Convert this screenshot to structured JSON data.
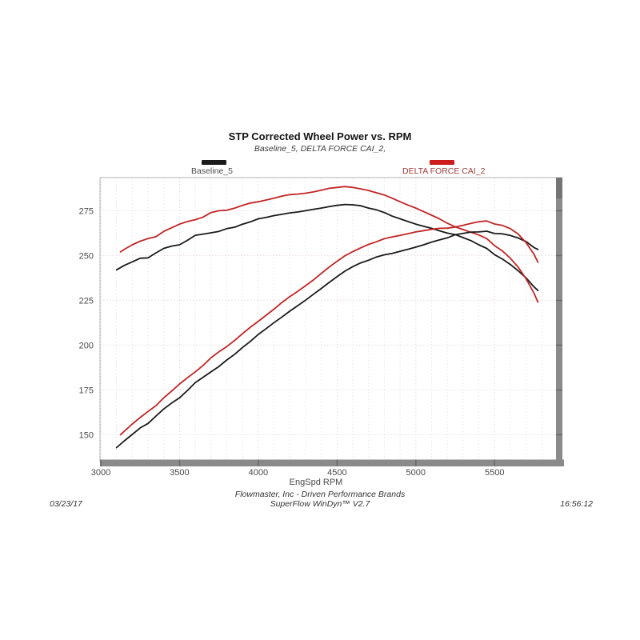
{
  "page": {
    "title": "STP Corrected Wheel Power vs. RPM",
    "subtitle": "Baseline_5, DELTA FORCE CAI_2,",
    "footer_line1": "Flowmaster, Inc - Driven Performance Brands",
    "footer_line2": "SuperFlow WinDyn™ V2.7",
    "date": "03/23/17",
    "time": "16:56:12"
  },
  "legend": [
    {
      "label": "Baseline_5",
      "color": "#1a1a1a",
      "text_color": "#4d4d4d"
    },
    {
      "label": "DELTA FORCE CAI_2",
      "color": "#cc1c1c",
      "text_color": "#9c3a3a"
    }
  ],
  "colors": {
    "baseline_curve": "#1a1a1a",
    "delta_curve": "#c22424",
    "axis_bar": "#8a8a8a",
    "axis_notch": "#6a6a6a",
    "plot_border": "#b3b3b3",
    "h_grid": "#ecdada",
    "v_grid": "#e7e7ee",
    "tick_text": "#4a4a4a"
  },
  "chart_data": {
    "type": "line",
    "title": "STP Corrected Wheel Power vs. RPM",
    "subtitle": "Baseline_5, DELTA FORCE CAI_2,",
    "xlabel": "EngSpd RPM",
    "ylabel": "",
    "xlim": [
      2995,
      5900
    ],
    "ylim": [
      135,
      293.5
    ],
    "x_ticks": [
      3000,
      3500,
      4000,
      4500,
      5000,
      5500
    ],
    "y_ticks": [
      150,
      175,
      200,
      225,
      250,
      275
    ],
    "x_minor_grid_step": 100,
    "grid": true,
    "legend_position": "top",
    "series": [
      {
        "name": "Baseline_5 torque",
        "run": "Baseline_5",
        "color": "#1a1a1a",
        "points": [
          [
            3100,
            242
          ],
          [
            3150,
            244.5
          ],
          [
            3200,
            246.5
          ],
          [
            3250,
            248.5
          ],
          [
            3300,
            248.7
          ],
          [
            3350,
            251.5
          ],
          [
            3400,
            254
          ],
          [
            3450,
            255.3
          ],
          [
            3500,
            256
          ],
          [
            3550,
            258.5
          ],
          [
            3600,
            261.3
          ],
          [
            3650,
            262
          ],
          [
            3700,
            262.7
          ],
          [
            3750,
            263.5
          ],
          [
            3800,
            265
          ],
          [
            3850,
            265.8
          ],
          [
            3900,
            267.5
          ],
          [
            3950,
            268.8
          ],
          [
            4000,
            270.5
          ],
          [
            4050,
            271.3
          ],
          [
            4100,
            272.3
          ],
          [
            4150,
            273
          ],
          [
            4200,
            273.8
          ],
          [
            4250,
            274.3
          ],
          [
            4300,
            275
          ],
          [
            4350,
            275.8
          ],
          [
            4400,
            276.5
          ],
          [
            4450,
            277.3
          ],
          [
            4500,
            278
          ],
          [
            4550,
            278.5
          ],
          [
            4600,
            278.3
          ],
          [
            4650,
            277.8
          ],
          [
            4700,
            276.5
          ],
          [
            4750,
            275.5
          ],
          [
            4800,
            274
          ],
          [
            4850,
            272
          ],
          [
            4900,
            270.5
          ],
          [
            4950,
            269
          ],
          [
            5000,
            267.5
          ],
          [
            5050,
            266.3
          ],
          [
            5100,
            265.2
          ],
          [
            5150,
            263.8
          ],
          [
            5200,
            262.5
          ],
          [
            5250,
            261.7
          ],
          [
            5300,
            260
          ],
          [
            5350,
            258.3
          ],
          [
            5400,
            256
          ],
          [
            5450,
            254
          ],
          [
            5500,
            250.5
          ],
          [
            5550,
            248
          ],
          [
            5600,
            245
          ],
          [
            5650,
            241.5
          ],
          [
            5700,
            237.5
          ],
          [
            5750,
            232.5
          ],
          [
            5775,
            230.5
          ]
        ]
      },
      {
        "name": "DELTA FORCE CAI_2 torque",
        "run": "DELTA FORCE CAI_2",
        "color": "#c22424",
        "points": [
          [
            3125,
            252
          ],
          [
            3150,
            253.5
          ],
          [
            3200,
            256
          ],
          [
            3250,
            258
          ],
          [
            3300,
            259.5
          ],
          [
            3350,
            260.5
          ],
          [
            3400,
            263.5
          ],
          [
            3450,
            265.5
          ],
          [
            3500,
            267.5
          ],
          [
            3550,
            269
          ],
          [
            3600,
            270
          ],
          [
            3650,
            271.5
          ],
          [
            3700,
            274
          ],
          [
            3750,
            275
          ],
          [
            3800,
            275.3
          ],
          [
            3850,
            276.5
          ],
          [
            3900,
            278
          ],
          [
            3950,
            279.3
          ],
          [
            4000,
            280
          ],
          [
            4050,
            281
          ],
          [
            4100,
            282
          ],
          [
            4150,
            283.2
          ],
          [
            4200,
            284
          ],
          [
            4250,
            284.3
          ],
          [
            4300,
            284.8
          ],
          [
            4350,
            285.5
          ],
          [
            4400,
            286.5
          ],
          [
            4450,
            287.5
          ],
          [
            4500,
            288
          ],
          [
            4550,
            288.5
          ],
          [
            4600,
            288
          ],
          [
            4650,
            287.2
          ],
          [
            4700,
            286.3
          ],
          [
            4750,
            285
          ],
          [
            4800,
            283.8
          ],
          [
            4850,
            282
          ],
          [
            4900,
            280
          ],
          [
            4950,
            278.2
          ],
          [
            5000,
            276.5
          ],
          [
            5050,
            274.5
          ],
          [
            5100,
            272.5
          ],
          [
            5150,
            270.5
          ],
          [
            5200,
            268
          ],
          [
            5250,
            266
          ],
          [
            5300,
            264.5
          ],
          [
            5350,
            263
          ],
          [
            5400,
            261.5
          ],
          [
            5450,
            259.5
          ],
          [
            5500,
            255.5
          ],
          [
            5550,
            252.5
          ],
          [
            5600,
            248.5
          ],
          [
            5650,
            243.5
          ],
          [
            5700,
            237
          ],
          [
            5750,
            229
          ],
          [
            5775,
            224
          ]
        ]
      },
      {
        "name": "Baseline_5 power",
        "run": "Baseline_5",
        "color": "#1a1a1a",
        "points": [
          [
            3100,
            142.8
          ],
          [
            3150,
            146.6
          ],
          [
            3200,
            150.2
          ],
          [
            3250,
            153.8
          ],
          [
            3300,
            156.3
          ],
          [
            3350,
            160.4
          ],
          [
            3400,
            164.4
          ],
          [
            3450,
            167.7
          ],
          [
            3500,
            170.6
          ],
          [
            3550,
            174.7
          ],
          [
            3600,
            179.1
          ],
          [
            3650,
            182.1
          ],
          [
            3700,
            185.1
          ],
          [
            3750,
            188.1
          ],
          [
            3800,
            191.7
          ],
          [
            3850,
            194.9
          ],
          [
            3900,
            198.7
          ],
          [
            3950,
            202.1
          ],
          [
            4000,
            206
          ],
          [
            4050,
            209.2
          ],
          [
            4100,
            212.6
          ],
          [
            4150,
            215.7
          ],
          [
            4200,
            219
          ],
          [
            4250,
            222
          ],
          [
            4300,
            225.1
          ],
          [
            4350,
            228.4
          ],
          [
            4400,
            231.6
          ],
          [
            4450,
            235
          ],
          [
            4500,
            238.2
          ],
          [
            4550,
            241.3
          ],
          [
            4600,
            243.8
          ],
          [
            4650,
            245.9
          ],
          [
            4700,
            247.4
          ],
          [
            4750,
            249.2
          ],
          [
            4800,
            250.4
          ],
          [
            4850,
            251.2
          ],
          [
            4900,
            252.4
          ],
          [
            4950,
            253.5
          ],
          [
            5000,
            254.7
          ],
          [
            5050,
            256
          ],
          [
            5100,
            257.5
          ],
          [
            5150,
            258.7
          ],
          [
            5200,
            259.9
          ],
          [
            5250,
            261.6
          ],
          [
            5300,
            262.4
          ],
          [
            5350,
            263.1
          ],
          [
            5400,
            263.2
          ],
          [
            5450,
            263.6
          ],
          [
            5500,
            262.3
          ],
          [
            5550,
            262.1
          ],
          [
            5600,
            261.2
          ],
          [
            5650,
            259.8
          ],
          [
            5700,
            257.8
          ],
          [
            5750,
            254.5
          ],
          [
            5775,
            253.4
          ]
        ]
      },
      {
        "name": "DELTA FORCE CAI_2 power",
        "run": "DELTA FORCE CAI_2",
        "color": "#c22424",
        "points": [
          [
            3125,
            150
          ],
          [
            3150,
            152
          ],
          [
            3200,
            156
          ],
          [
            3250,
            159.6
          ],
          [
            3300,
            163
          ],
          [
            3350,
            166.2
          ],
          [
            3400,
            170.6
          ],
          [
            3450,
            174.4
          ],
          [
            3500,
            178.3
          ],
          [
            3550,
            181.8
          ],
          [
            3600,
            185.1
          ],
          [
            3650,
            188.7
          ],
          [
            3700,
            193
          ],
          [
            3750,
            196.3
          ],
          [
            3800,
            199.2
          ],
          [
            3850,
            202.7
          ],
          [
            3900,
            206.4
          ],
          [
            3950,
            210
          ],
          [
            4000,
            213.3
          ],
          [
            4050,
            216.7
          ],
          [
            4100,
            220.1
          ],
          [
            4150,
            223.8
          ],
          [
            4200,
            227.1
          ],
          [
            4250,
            230
          ],
          [
            4300,
            233.2
          ],
          [
            4350,
            236.4
          ],
          [
            4400,
            240
          ],
          [
            4450,
            243.6
          ],
          [
            4500,
            246.8
          ],
          [
            4550,
            249.9
          ],
          [
            4600,
            252.2
          ],
          [
            4650,
            254.3
          ],
          [
            4700,
            256.2
          ],
          [
            4750,
            257.7
          ],
          [
            4800,
            259.4
          ],
          [
            4850,
            260.4
          ],
          [
            4900,
            261.2
          ],
          [
            4950,
            262.2
          ],
          [
            5000,
            263.2
          ],
          [
            5050,
            263.9
          ],
          [
            5100,
            264.6
          ],
          [
            5150,
            265.2
          ],
          [
            5200,
            265.3
          ],
          [
            5250,
            265.9
          ],
          [
            5300,
            266.9
          ],
          [
            5350,
            267.9
          ],
          [
            5400,
            268.9
          ],
          [
            5450,
            269.3
          ],
          [
            5500,
            267.6
          ],
          [
            5550,
            266.8
          ],
          [
            5600,
            265
          ],
          [
            5650,
            262
          ],
          [
            5700,
            257.2
          ],
          [
            5750,
            250.7
          ],
          [
            5775,
            246.3
          ]
        ]
      }
    ]
  }
}
